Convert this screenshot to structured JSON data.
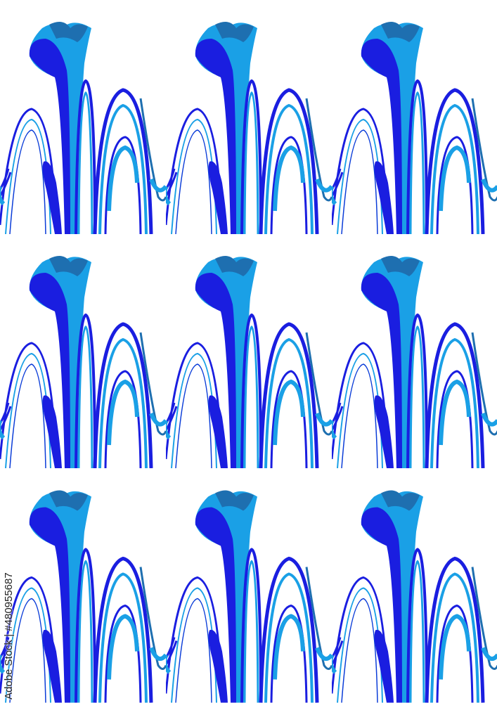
{
  "artwork": {
    "description_colors": {
      "deep_blue": "#1a1ee0",
      "royal_blue": "#0a3cd8",
      "sky_blue": "#1aa0e6",
      "teal_blue": "#1e6fb0",
      "background": "#ffffff"
    },
    "grid": {
      "rows": 3,
      "columns": 3
    }
  },
  "watermark": {
    "text": "Adobe Stock | #480955687"
  }
}
